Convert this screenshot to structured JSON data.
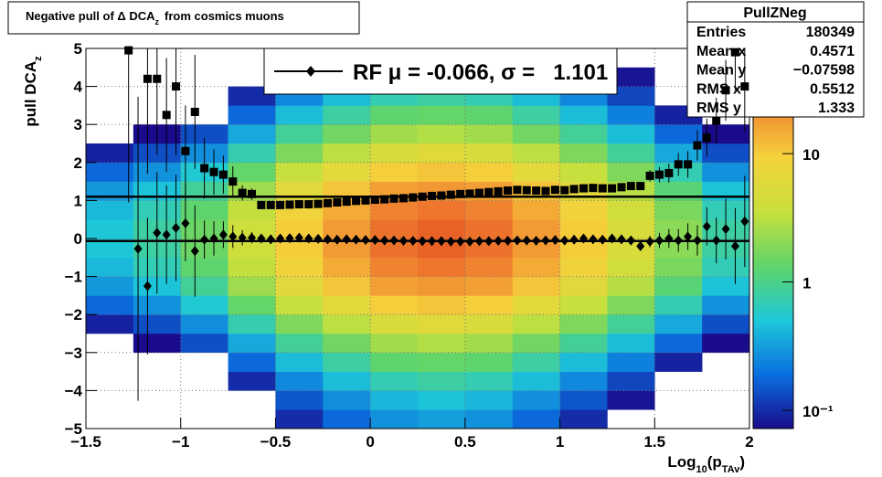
{
  "chart_data": {
    "type": "heatmap-profile",
    "title": [
      "Negative pull of Δ DCA",
      "z",
      "from cosmics muons"
    ],
    "y_label": [
      "pull DCA",
      "z"
    ],
    "x_label": [
      "Log",
      "10",
      "(p",
      "TAv",
      ")"
    ],
    "xlim": [
      -1.5,
      2
    ],
    "ylim": [
      -5,
      5
    ],
    "xticks": [
      {
        "value": -1.5,
        "label": "−1.5"
      },
      {
        "value": -1,
        "label": "−1"
      },
      {
        "value": -0.5,
        "label": "−0.5"
      },
      0,
      0.5,
      1,
      1.5,
      2
    ],
    "yticks": [
      {
        "value": -5,
        "label": "−5"
      },
      {
        "value": -4,
        "label": "−4"
      },
      {
        "value": -3,
        "label": "−3"
      },
      {
        "value": -2,
        "label": "−2"
      },
      {
        "value": -1,
        "label": "−1"
      },
      0,
      1,
      2,
      3,
      4,
      5
    ],
    "grid": true,
    "zlim": [
      0.072,
      66
    ],
    "zscale": "log",
    "zticks": [
      {
        "value": 0.1,
        "label": "10⁻¹"
      },
      1,
      10
    ],
    "palette": [
      "#1a0a8c",
      "#0a6fe0",
      "#1ec8d8",
      "#5fd46a",
      "#c8e03c",
      "#f5d23c",
      "#f08030",
      "#d20a0a"
    ],
    "heatmap": {
      "xbins": [
        -1.5,
        -1.25,
        -1,
        -0.75,
        -0.5,
        -0.25,
        0,
        0.25,
        0.5,
        0.75,
        1,
        1.25,
        1.5,
        1.75,
        2
      ],
      "ybins": [
        -5,
        -4.5,
        -4,
        -3.5,
        -3,
        -2.5,
        -2,
        -1.5,
        -1,
        -0.5,
        0,
        0.5,
        1,
        1.5,
        2,
        2.5,
        3,
        3.5,
        4,
        4.5,
        5
      ],
      "z": [
        [
          0.005,
          0.008,
          0.013,
          0.023,
          0.045,
          0.09,
          0.18,
          0.3,
          0.43,
          0.5,
          0.5,
          0.43,
          0.3,
          0.18,
          0.09,
          0.045,
          0.023,
          0.013,
          0.008,
          0.005
        ],
        [
          0.008,
          0.012,
          0.02,
          0.036,
          0.072,
          0.14,
          0.28,
          0.48,
          0.68,
          0.8,
          0.8,
          0.68,
          0.48,
          0.28,
          0.14,
          0.072,
          0.036,
          0.02,
          0.012,
          0.008
        ],
        [
          0.015,
          0.023,
          0.038,
          0.068,
          0.14,
          0.27,
          0.53,
          0.9,
          1.3,
          1.5,
          1.5,
          1.3,
          0.9,
          0.53,
          0.27,
          0.14,
          0.068,
          0.038,
          0.023,
          0.015
        ],
        [
          0.04,
          0.06,
          0.1,
          0.18,
          0.36,
          0.72,
          1.4,
          2.4,
          3.4,
          4,
          4,
          3.4,
          2.4,
          1.4,
          0.72,
          0.36,
          0.18,
          0.1,
          0.06,
          0.04
        ],
        [
          0.1,
          0.15,
          0.25,
          0.45,
          0.9,
          1.8,
          3.5,
          6,
          8.5,
          10,
          10,
          8.5,
          6,
          3.5,
          1.8,
          0.9,
          0.45,
          0.25,
          0.15,
          0.1
        ],
        [
          0.18,
          0.27,
          0.45,
          0.81,
          1.6,
          3.2,
          6.3,
          11,
          15,
          18,
          18,
          15,
          11,
          6.3,
          3.2,
          1.6,
          0.81,
          0.45,
          0.27,
          0.18
        ],
        [
          0.28,
          0.42,
          0.7,
          1.3,
          2.5,
          5,
          9.8,
          17,
          24,
          28,
          28,
          24,
          17,
          9.8,
          5,
          2.5,
          1.3,
          0.7,
          0.42,
          0.28
        ],
        [
          0.32,
          0.48,
          0.8,
          1.4,
          2.9,
          5.8,
          11,
          19,
          27,
          32,
          32,
          27,
          19,
          11,
          5.8,
          2.9,
          1.4,
          0.8,
          0.48,
          0.32
        ],
        [
          0.28,
          0.42,
          0.7,
          1.3,
          2.5,
          5,
          9.8,
          17,
          24,
          28,
          28,
          24,
          17,
          9.8,
          5,
          2.5,
          1.3,
          0.7,
          0.42,
          0.28
        ],
        [
          0.18,
          0.27,
          0.45,
          0.81,
          1.6,
          3.2,
          6.3,
          11,
          15,
          18,
          18,
          15,
          11,
          6.3,
          3.2,
          1.6,
          0.81,
          0.45,
          0.27,
          0.18
        ],
        [
          0.1,
          0.15,
          0.25,
          0.45,
          0.9,
          1.8,
          3.5,
          6,
          8.5,
          10,
          10,
          8.5,
          6,
          3.5,
          1.8,
          0.9,
          0.45,
          0.25,
          0.15,
          0.1
        ],
        [
          0.05,
          0.08,
          0.13,
          0.23,
          0.45,
          0.9,
          1.8,
          3,
          4.3,
          5,
          5,
          4.3,
          3,
          1.8,
          0.9,
          0.45,
          0.23,
          0.13,
          0.08,
          0.05
        ],
        [
          0.02,
          0.03,
          0.05,
          0.09,
          0.18,
          0.36,
          0.7,
          1.2,
          1.7,
          2,
          2,
          1.7,
          1.2,
          0.7,
          0.36,
          0.18,
          0.09,
          0.05,
          0.03,
          0.02
        ],
        [
          0.008,
          0.012,
          0.02,
          0.036,
          0.072,
          0.14,
          0.28,
          0.48,
          0.68,
          0.8,
          0.8,
          0.68,
          0.48,
          0.28,
          0.14,
          0.072,
          0.036,
          0.02,
          0.012,
          0.008
        ]
      ]
    },
    "x": [
      -1.275,
      -1.225,
      -1.175,
      -1.125,
      -1.075,
      -1.025,
      -0.975,
      -0.925,
      -0.875,
      -0.825,
      -0.775,
      -0.725,
      -0.675,
      -0.625,
      -0.575,
      -0.525,
      -0.475,
      -0.425,
      -0.375,
      -0.325,
      -0.275,
      -0.225,
      -0.175,
      -0.125,
      -0.075,
      -0.025,
      0.025,
      0.075,
      0.125,
      0.175,
      0.225,
      0.275,
      0.325,
      0.375,
      0.425,
      0.475,
      0.525,
      0.575,
      0.625,
      0.675,
      0.725,
      0.775,
      0.825,
      0.875,
      0.925,
      0.975,
      1.025,
      1.075,
      1.125,
      1.175,
      1.225,
      1.275,
      1.325,
      1.375,
      1.425,
      1.475,
      1.525,
      1.575,
      1.625,
      1.675,
      1.725,
      1.775,
      1.825,
      1.875,
      1.925,
      1.975
    ],
    "series": [
      {
        "marker": "square",
        "color": "#000000",
        "values": [
          4.95,
          null,
          4.2,
          4.2,
          3.25,
          4.0,
          2.3,
          3.33,
          1.85,
          1.75,
          1.68,
          1.5,
          1.2,
          1.17,
          0.88,
          0.88,
          0.88,
          0.89,
          0.9,
          0.9,
          0.91,
          0.93,
          0.95,
          0.97,
          0.99,
          1.0,
          1.02,
          1.03,
          1.05,
          1.06,
          1.08,
          1.1,
          1.12,
          1.13,
          1.15,
          1.17,
          1.18,
          1.2,
          1.22,
          1.24,
          1.26,
          1.28,
          1.27,
          1.26,
          1.25,
          1.28,
          1.27,
          1.3,
          1.32,
          1.33,
          1.32,
          1.32,
          1.35,
          1.38,
          1.38,
          1.65,
          1.68,
          1.72,
          1.95,
          1.95,
          2.45,
          2.65,
          3.1,
          3.9,
          4.9,
          4.0
        ],
        "errors": [
          4,
          null,
          2.5,
          2,
          1.5,
          1.8,
          1.2,
          1.5,
          0.8,
          0.6,
          0.5,
          0.4,
          0.2,
          0.15,
          0.05,
          0.04,
          0.04,
          0.03,
          0.03,
          0.03,
          0.02,
          0.02,
          0.02,
          0.02,
          0.02,
          0.02,
          0.02,
          0.02,
          0.02,
          0.02,
          0.02,
          0.02,
          0.02,
          0.02,
          0.02,
          0.02,
          0.02,
          0.02,
          0.02,
          0.02,
          0.02,
          0.02,
          0.02,
          0.03,
          0.03,
          0.03,
          0.03,
          0.04,
          0.04,
          0.05,
          0.05,
          0.06,
          0.07,
          0.08,
          0.1,
          0.15,
          0.2,
          0.25,
          0.3,
          0.35,
          0.4,
          0.5,
          0.6,
          0.8,
          1.0,
          1.2
        ]
      },
      {
        "marker": "diamond",
        "color": "#000000",
        "values": [
          null,
          -0.27,
          -1.25,
          0.15,
          0.1,
          0.28,
          0.4,
          -0.33,
          -0.03,
          0.0,
          0.1,
          0.05,
          0.02,
          0.02,
          0.0,
          -0.02,
          0.0,
          0.01,
          0.02,
          0.0,
          -0.01,
          -0.02,
          -0.03,
          -0.02,
          -0.03,
          -0.04,
          -0.04,
          -0.05,
          -0.05,
          -0.06,
          -0.06,
          -0.07,
          -0.07,
          -0.07,
          -0.08,
          -0.08,
          -0.08,
          -0.07,
          -0.07,
          -0.06,
          -0.06,
          -0.05,
          -0.05,
          -0.06,
          -0.05,
          -0.04,
          -0.05,
          -0.03,
          0.0,
          -0.02,
          -0.03,
          0.0,
          -0.02,
          -0.05,
          -0.2,
          -0.08,
          -0.05,
          0.0,
          -0.05,
          0.05,
          -0.05,
          0.32,
          -0.05,
          0.25,
          -0.2,
          0.45
        ],
        "errors": [
          null,
          4,
          1.8,
          1.6,
          1.3,
          1.4,
          1,
          1.2,
          0.5,
          0.45,
          0.35,
          0.3,
          0.2,
          0.15,
          0.05,
          0.04,
          0.04,
          0.03,
          0.03,
          0.03,
          0.02,
          0.02,
          0.02,
          0.02,
          0.02,
          0.02,
          0.02,
          0.02,
          0.02,
          0.02,
          0.02,
          0.02,
          0.02,
          0.02,
          0.02,
          0.02,
          0.02,
          0.02,
          0.02,
          0.02,
          0.02,
          0.02,
          0.02,
          0.03,
          0.03,
          0.03,
          0.03,
          0.04,
          0.04,
          0.05,
          0.05,
          0.06,
          0.07,
          0.08,
          0.1,
          0.15,
          0.2,
          0.25,
          0.3,
          0.35,
          0.4,
          0.5,
          0.6,
          0.8,
          1.0,
          1.2
        ]
      }
    ],
    "fit": {
      "label": "RF μ = -0.066, σ =   1.101",
      "mu": -0.066,
      "sigma": 1.101
    },
    "stats": {
      "title": "PullZNeg",
      "rows": [
        [
          "Entries",
          180349
        ],
        [
          "Mean x",
          0.4571
        ],
        [
          "Mean y",
          "−0.07598"
        ],
        [
          "RMS x",
          0.5512
        ],
        [
          "RMS y",
          1.333
        ]
      ]
    }
  }
}
